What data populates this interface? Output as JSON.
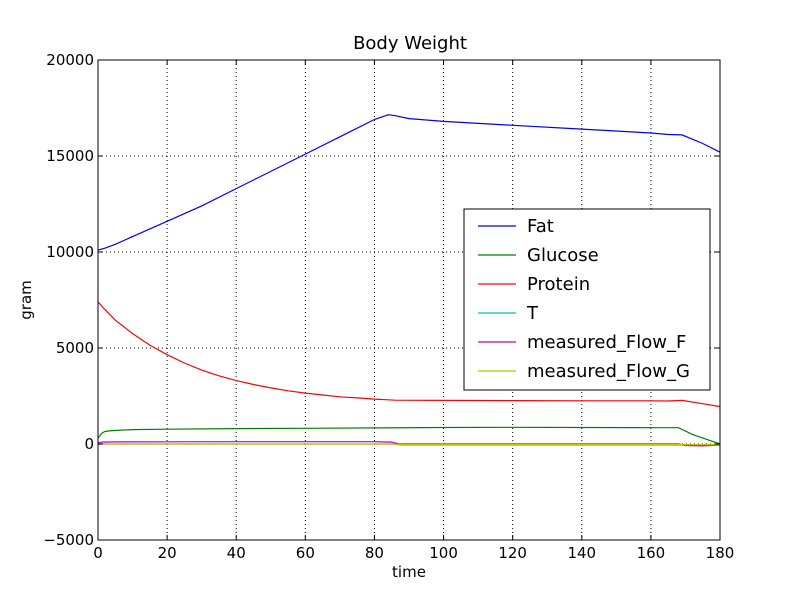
{
  "chart_data": {
    "type": "line",
    "title": "Body Weight",
    "xlabel": "time",
    "ylabel": "gram",
    "xlim": [
      0,
      180
    ],
    "ylim": [
      -5000,
      20000
    ],
    "xticks": [
      0,
      20,
      40,
      60,
      80,
      100,
      120,
      140,
      160,
      180
    ],
    "yticks": [
      -5000,
      0,
      5000,
      10000,
      15000,
      20000
    ],
    "xtick_labels": [
      "0",
      "20",
      "40",
      "60",
      "80",
      "100",
      "120",
      "140",
      "160",
      "180"
    ],
    "ytick_labels": [
      "−5000",
      "0",
      "5000",
      "10000",
      "15000",
      "20000"
    ],
    "grid": true,
    "legend_position": "center-right",
    "series": [
      {
        "name": "Fat",
        "color": "#0000ff",
        "points": [
          [
            0,
            10100
          ],
          [
            2,
            10200
          ],
          [
            5,
            10400
          ],
          [
            10,
            10800
          ],
          [
            20,
            11600
          ],
          [
            30,
            12400
          ],
          [
            40,
            13300
          ],
          [
            50,
            14200
          ],
          [
            60,
            15100
          ],
          [
            70,
            16000
          ],
          [
            80,
            16900
          ],
          [
            84,
            17150
          ],
          [
            86,
            17100
          ],
          [
            90,
            16950
          ],
          [
            100,
            16800
          ],
          [
            120,
            16600
          ],
          [
            140,
            16400
          ],
          [
            160,
            16200
          ],
          [
            165,
            16120
          ],
          [
            169,
            16100
          ],
          [
            175,
            15650
          ],
          [
            180,
            15200
          ]
        ]
      },
      {
        "name": "Glucose",
        "color": "#008000",
        "points": [
          [
            0,
            300
          ],
          [
            1,
            550
          ],
          [
            2,
            650
          ],
          [
            4,
            700
          ],
          [
            10,
            750
          ],
          [
            20,
            770
          ],
          [
            40,
            800
          ],
          [
            60,
            820
          ],
          [
            80,
            840
          ],
          [
            100,
            860
          ],
          [
            120,
            870
          ],
          [
            140,
            860
          ],
          [
            160,
            850
          ],
          [
            168,
            850
          ],
          [
            172,
            500
          ],
          [
            176,
            250
          ],
          [
            180,
            0
          ]
        ]
      },
      {
        "name": "Protein",
        "color": "#ff0000",
        "points": [
          [
            0,
            7400
          ],
          [
            2,
            7000
          ],
          [
            5,
            6450
          ],
          [
            10,
            5750
          ],
          [
            15,
            5150
          ],
          [
            20,
            4650
          ],
          [
            25,
            4220
          ],
          [
            30,
            3850
          ],
          [
            35,
            3550
          ],
          [
            40,
            3300
          ],
          [
            45,
            3100
          ],
          [
            50,
            2920
          ],
          [
            55,
            2770
          ],
          [
            60,
            2650
          ],
          [
            65,
            2550
          ],
          [
            70,
            2460
          ],
          [
            75,
            2400
          ],
          [
            80,
            2340
          ],
          [
            86,
            2280
          ],
          [
            100,
            2270
          ],
          [
            120,
            2260
          ],
          [
            140,
            2250
          ],
          [
            160,
            2250
          ],
          [
            165,
            2240
          ],
          [
            169,
            2270
          ],
          [
            175,
            2100
          ],
          [
            180,
            1950
          ]
        ]
      },
      {
        "name": "T",
        "color": "#00bfbf",
        "points": [
          [
            0,
            0
          ],
          [
            85,
            0
          ],
          [
            88,
            -50
          ],
          [
            100,
            -50
          ],
          [
            168,
            -50
          ],
          [
            170,
            -50
          ],
          [
            180,
            -50
          ]
        ]
      },
      {
        "name": "measured_Flow_F",
        "color": "#bf00bf",
        "points": [
          [
            0,
            50
          ],
          [
            1,
            100
          ],
          [
            5,
            110
          ],
          [
            20,
            115
          ],
          [
            40,
            120
          ],
          [
            60,
            120
          ],
          [
            80,
            120
          ],
          [
            85,
            100
          ],
          [
            87,
            0
          ],
          [
            168,
            0
          ],
          [
            170,
            -80
          ],
          [
            175,
            -100
          ],
          [
            180,
            -50
          ]
        ]
      },
      {
        "name": "measured_Flow_G",
        "color": "#bfbf00",
        "points": [
          [
            0,
            0
          ],
          [
            10,
            0
          ],
          [
            40,
            0
          ],
          [
            85,
            0
          ],
          [
            88,
            -30
          ],
          [
            168,
            -30
          ],
          [
            170,
            -30
          ],
          [
            180,
            -30
          ]
        ]
      }
    ]
  }
}
